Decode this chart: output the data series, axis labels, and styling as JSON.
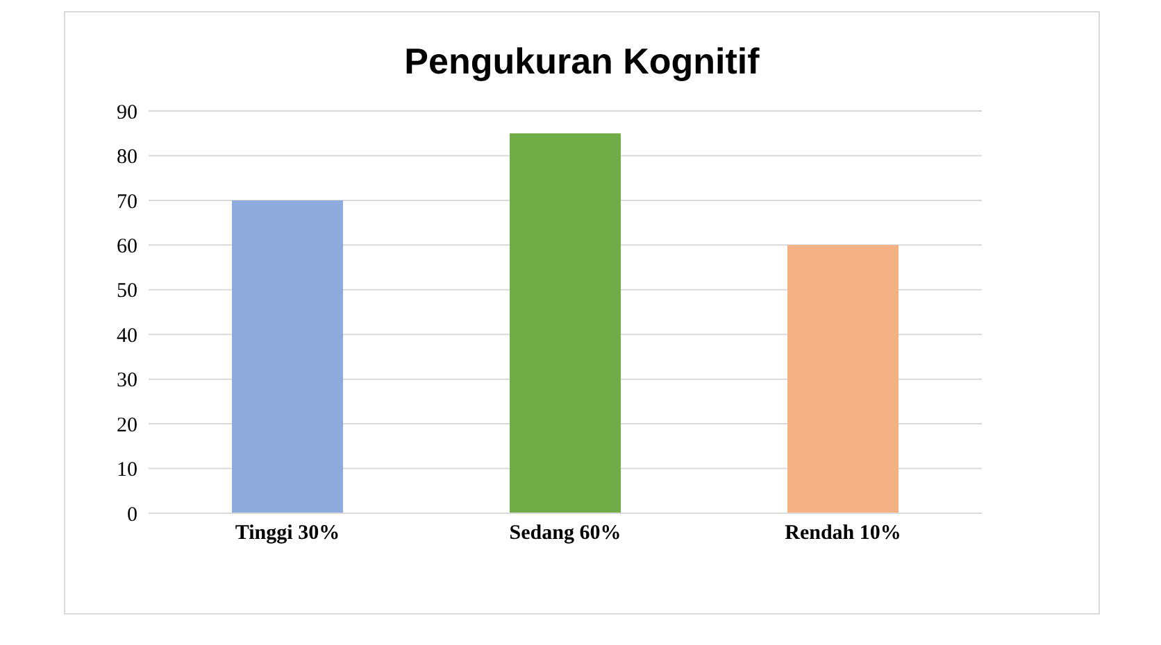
{
  "chart_data": {
    "type": "bar",
    "title": "Pengukuran Kognitif",
    "categories": [
      "Tinggi 30%",
      "Sedang 60%",
      "Rendah 10%"
    ],
    "values": [
      70,
      85,
      60
    ],
    "colors": [
      "#8faadc",
      "#70ad47",
      "#f4b183"
    ],
    "ylim": [
      0,
      90
    ],
    "yticks": [
      0,
      10,
      20,
      30,
      40,
      50,
      60,
      70,
      80,
      90
    ],
    "grid": "y"
  }
}
